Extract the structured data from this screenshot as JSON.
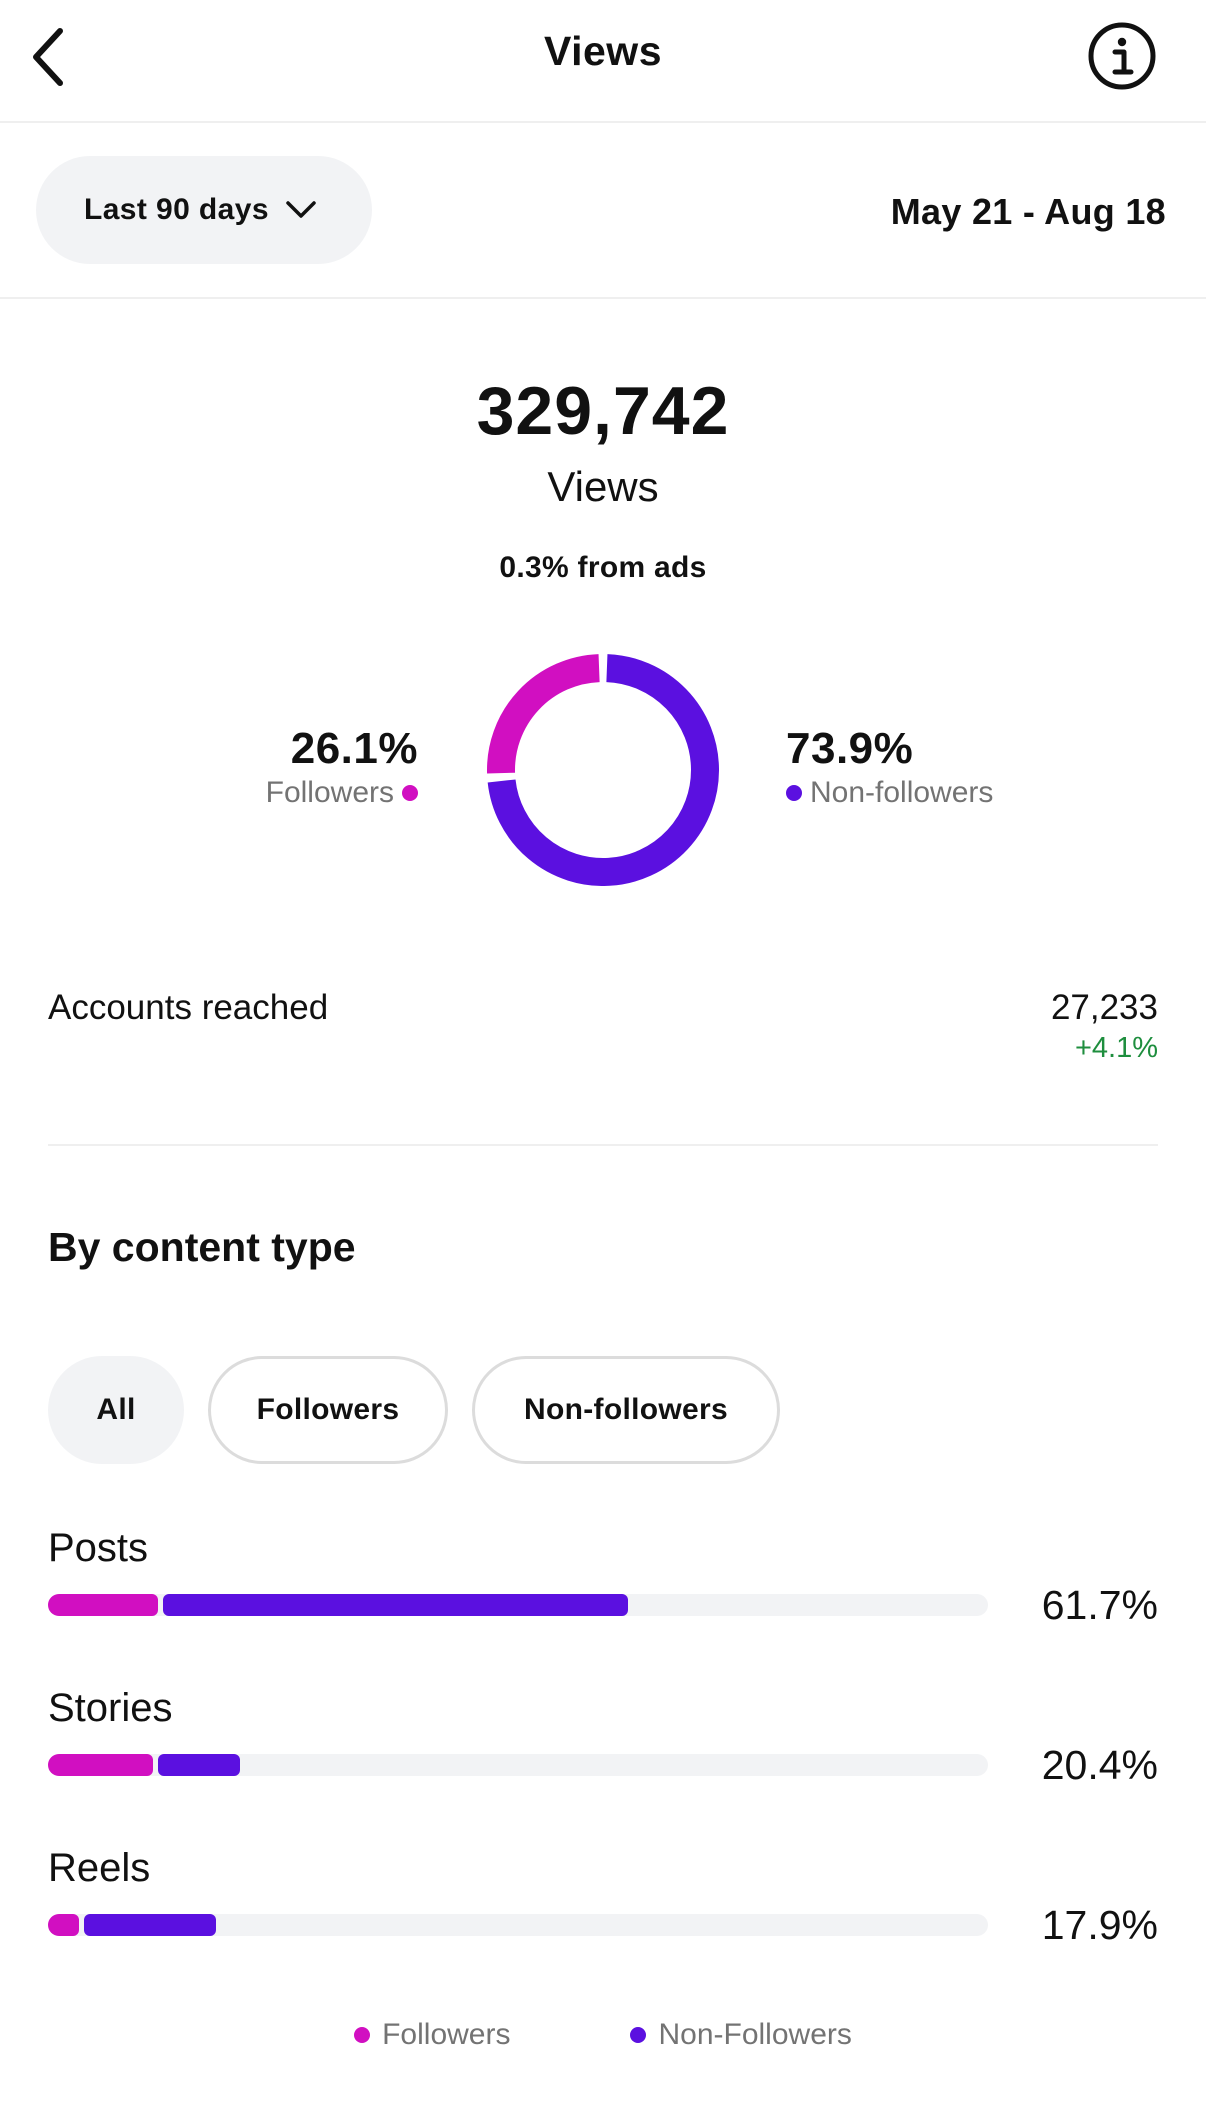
{
  "header": {
    "title": "Views"
  },
  "filter": {
    "range_label": "Last 90 days",
    "date_range": "May 21 - Aug 18"
  },
  "summary": {
    "total": "329,742",
    "total_label": "Views",
    "ads_note": "0.3% from ads",
    "followers_pct": "26.1%",
    "followers_label": "Followers",
    "nonfollowers_pct": "73.9%",
    "nonfollowers_label": "Non-followers",
    "followers_share": 26.1,
    "nonfollowers_share": 73.9
  },
  "reach": {
    "label": "Accounts reached",
    "value": "27,233",
    "change": "+4.1%"
  },
  "content": {
    "title": "By content type",
    "filters": [
      "All",
      "Followers",
      "Non-followers"
    ],
    "active_filter": "All",
    "rows": [
      {
        "name": "Posts",
        "pct": "61.7%",
        "total": 61.7,
        "followers": 11.7
      },
      {
        "name": "Stories",
        "pct": "20.4%",
        "total": 20.4,
        "followers": 11.2
      },
      {
        "name": "Reels",
        "pct": "17.9%",
        "total": 17.9,
        "followers": 3.3
      }
    ]
  },
  "legend": {
    "followers": "Followers",
    "nonfollowers": "Non-Followers"
  },
  "colors": {
    "followers": "#d10fc1",
    "nonfollowers": "#5b10e0",
    "positive": "#1e8e3e"
  }
}
